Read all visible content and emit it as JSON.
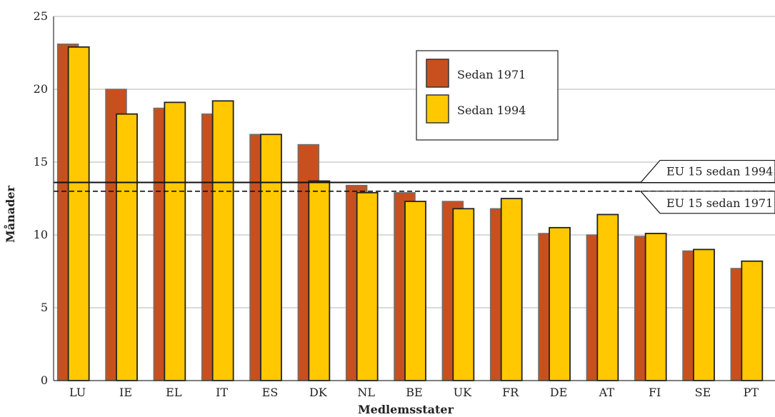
{
  "chart_data": {
    "type": "bar",
    "xlabel": "Medlemsstater",
    "ylabel": "Månader",
    "ylim": [
      0,
      25
    ],
    "yticks": [
      0,
      5,
      10,
      15,
      20,
      25
    ],
    "grid": true,
    "legend_position": "top-center",
    "categories": [
      "LU",
      "IE",
      "EL",
      "IT",
      "ES",
      "DK",
      "NL",
      "BE",
      "UK",
      "FR",
      "DE",
      "AT",
      "FI",
      "SE",
      "PT"
    ],
    "series": [
      {
        "name": "Sedan 1971",
        "color": "#c8501e",
        "values": [
          23.1,
          20.0,
          18.7,
          18.3,
          16.9,
          16.2,
          13.4,
          12.9,
          12.3,
          11.8,
          10.1,
          10.0,
          9.9,
          8.9,
          7.7
        ]
      },
      {
        "name": "Sedan 1994",
        "color": "#ffc800",
        "values": [
          22.9,
          18.3,
          19.1,
          19.2,
          16.9,
          13.7,
          12.9,
          12.3,
          11.8,
          12.5,
          10.5,
          11.4,
          10.1,
          9.0,
          8.2
        ]
      }
    ],
    "reference_lines": [
      {
        "label": "EU 15 sedan 1994",
        "value": 13.6,
        "style": "solid"
      },
      {
        "label": "EU 15 sedan 1971",
        "value": 13.0,
        "style": "dashed"
      }
    ]
  }
}
